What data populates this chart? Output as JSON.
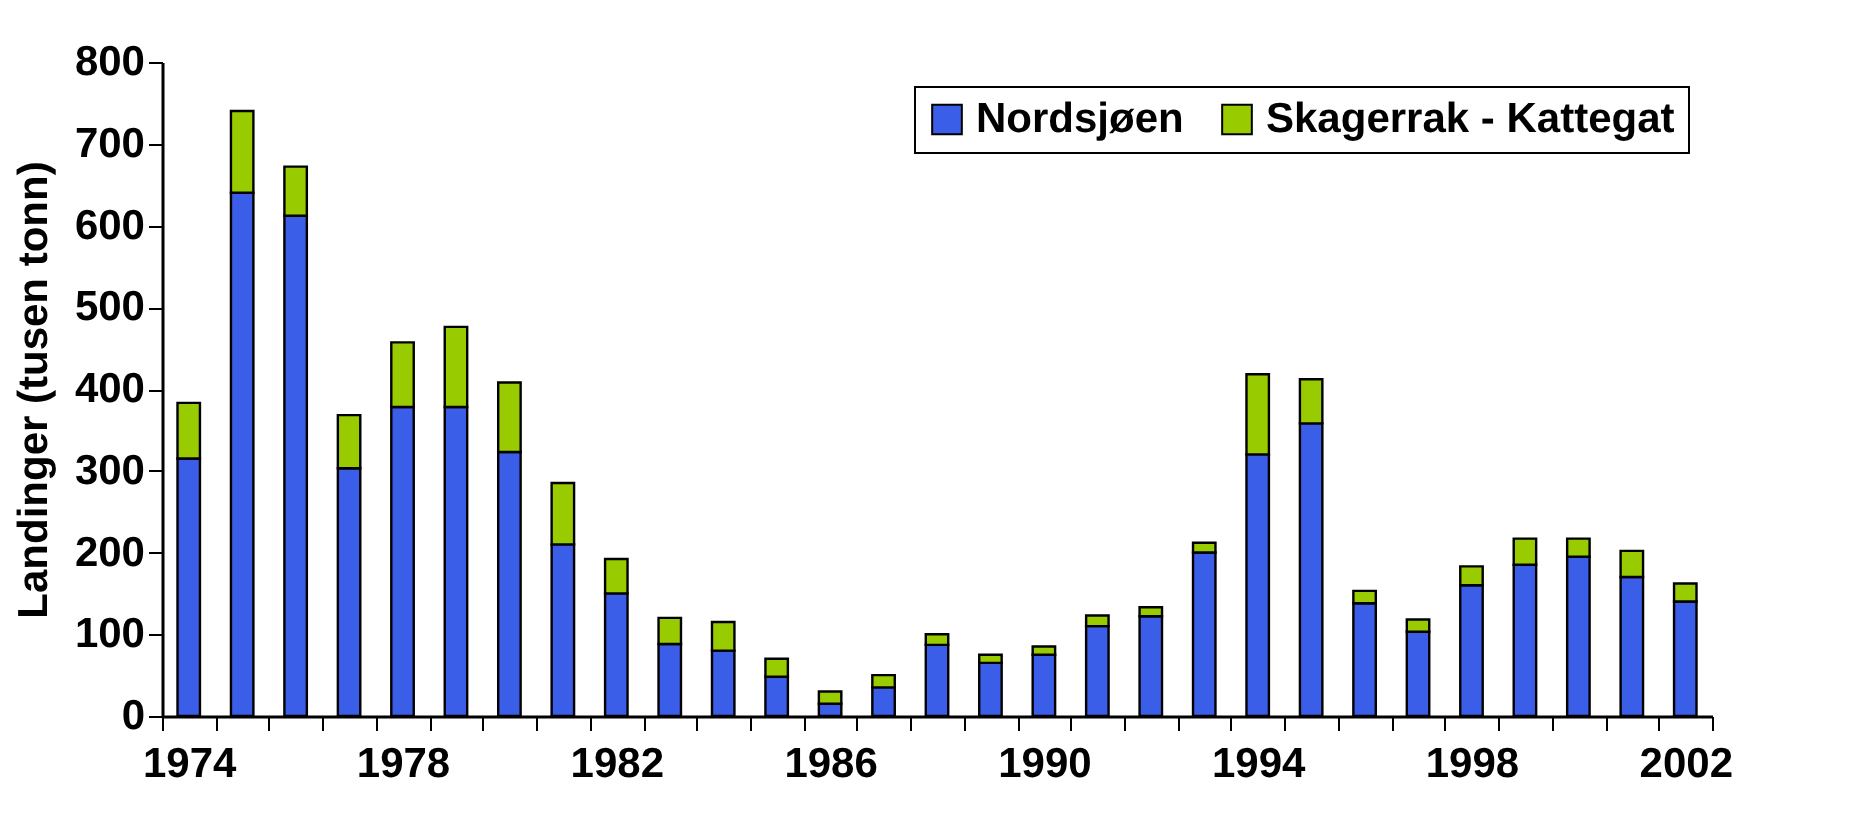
{
  "chart_data": {
    "type": "bar",
    "ylabel": "Landinger (tusen tonn)",
    "categories": [
      "1974",
      null,
      null,
      null,
      "1978",
      null,
      null,
      null,
      "1982",
      null,
      null,
      null,
      "1986",
      null,
      null,
      null,
      "1990",
      null,
      null,
      null,
      "1994",
      null,
      null,
      null,
      "1998",
      null,
      null,
      null,
      "2002"
    ],
    "series": [
      {
        "name": "Nordsjøen",
        "color": "#3b5ee8",
        "values": [
          315,
          640,
          612,
          303,
          378,
          378,
          323,
          210,
          150,
          88,
          80,
          48,
          15,
          35,
          87,
          65,
          75,
          110,
          122,
          200,
          320,
          358,
          138,
          103,
          160,
          185,
          195,
          170,
          140
        ]
      },
      {
        "name": "Skagerrak - Kattegat",
        "color": "#99cc00",
        "values": [
          68,
          100,
          60,
          65,
          79,
          98,
          85,
          75,
          42,
          32,
          35,
          22,
          15,
          15,
          13,
          10,
          10,
          13,
          11,
          12,
          98,
          54,
          15,
          15,
          23,
          32,
          22,
          32,
          22
        ]
      }
    ],
    "stacked": true,
    "ylim": [
      0,
      800
    ],
    "yticks": [
      0,
      100,
      200,
      300,
      400,
      500,
      600,
      700,
      800
    ],
    "grid": false,
    "legend": "top right"
  }
}
